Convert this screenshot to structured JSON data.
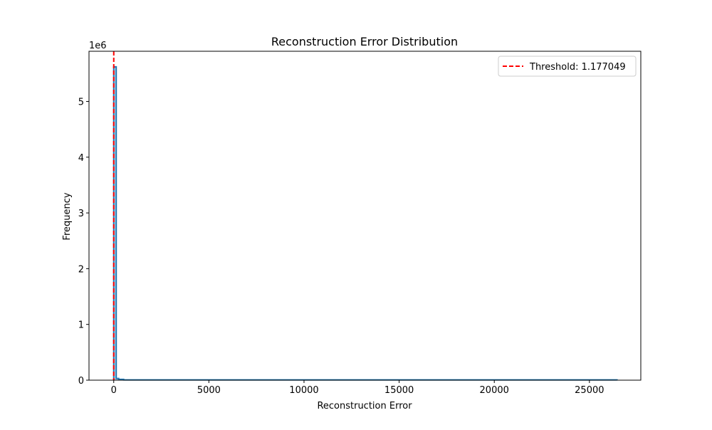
{
  "chart_data": {
    "type": "area",
    "title": "Reconstruction Error Distribution",
    "xlabel": "Reconstruction Error",
    "ylabel": "Frequency",
    "y_offset_label": "1e6",
    "xlim": [
      -1300,
      27700
    ],
    "ylim": [
      0,
      5.9
    ],
    "y_unit_multiplier": 1000000,
    "x_ticks": [
      0,
      5000,
      10000,
      15000,
      20000,
      25000
    ],
    "x_tick_labels": [
      "0",
      "5000",
      "10000",
      "15000",
      "20000",
      "25000"
    ],
    "y_ticks": [
      0,
      1,
      2,
      3,
      4,
      5
    ],
    "y_tick_labels": [
      "0",
      "1",
      "2",
      "3",
      "4",
      "5"
    ],
    "grid": false,
    "legend_position": "top-right",
    "series": [
      {
        "color": "#1f77b4",
        "x": [
          0,
          0,
          130,
          130,
          260,
          260,
          520,
          520,
          26450,
          26450
        ],
        "y": [
          0,
          5.62,
          5.62,
          0.03,
          0.03,
          0.015,
          0.015,
          0.005,
          0.005,
          0
        ]
      }
    ],
    "threshold": {
      "value": 1.177049,
      "label": "Threshold: 1.177049",
      "color": "#ff0000",
      "style": "dashed"
    }
  }
}
